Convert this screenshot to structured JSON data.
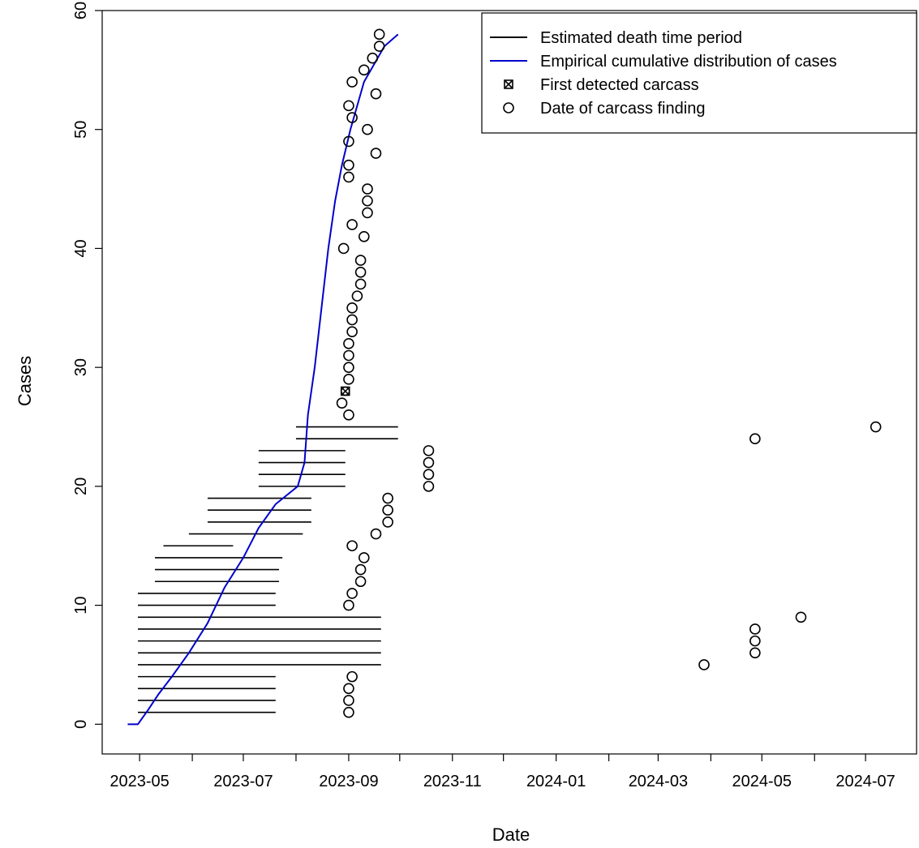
{
  "chart_data": {
    "type": "scatter",
    "xlabel": "Date",
    "ylabel": "Cases",
    "x_axis": {
      "type": "date",
      "range": [
        "2023-04-09",
        "2024-07-31"
      ],
      "tick_labels": [
        "2023-05",
        "2023-07",
        "2023-09",
        "2023-11",
        "2024-01",
        "2024-03",
        "2024-05",
        "2024-07"
      ],
      "minor_ticks": [
        "2023-06",
        "2023-08",
        "2023-10",
        "2023-12",
        "2024-02",
        "2024-04",
        "2024-06"
      ]
    },
    "y_axis": {
      "range": [
        -2.5,
        60
      ],
      "ticks": [
        0,
        10,
        20,
        30,
        40,
        50,
        60
      ]
    },
    "grid": false,
    "legend_position": "top-right",
    "legend": [
      {
        "label": "Estimated death time period",
        "kind": "line",
        "color": "#000000"
      },
      {
        "label": "Empirical cumulative distribution of cases",
        "kind": "line",
        "color": "#0000cc"
      },
      {
        "label": "First detected carcass",
        "kind": "marker-x-circle",
        "color": "#000000"
      },
      {
        "label": "Date of carcass finding",
        "kind": "marker-circle",
        "color": "#000000"
      }
    ],
    "series": [
      {
        "name": "Estimated death time period",
        "intervals": [
          {
            "case": 1,
            "start": "2023-04-30",
            "end": "2023-07-20"
          },
          {
            "case": 2,
            "start": "2023-04-30",
            "end": "2023-07-20"
          },
          {
            "case": 3,
            "start": "2023-04-30",
            "end": "2023-07-20"
          },
          {
            "case": 4,
            "start": "2023-04-30",
            "end": "2023-07-20"
          },
          {
            "case": 5,
            "start": "2023-04-30",
            "end": "2023-09-20"
          },
          {
            "case": 6,
            "start": "2023-04-30",
            "end": "2023-09-20"
          },
          {
            "case": 7,
            "start": "2023-04-30",
            "end": "2023-09-20"
          },
          {
            "case": 8,
            "start": "2023-04-30",
            "end": "2023-09-20"
          },
          {
            "case": 9,
            "start": "2023-04-30",
            "end": "2023-09-20"
          },
          {
            "case": 10,
            "start": "2023-04-30",
            "end": "2023-07-20"
          },
          {
            "case": 11,
            "start": "2023-04-30",
            "end": "2023-07-20"
          },
          {
            "case": 12,
            "start": "2023-05-10",
            "end": "2023-07-22"
          },
          {
            "case": 13,
            "start": "2023-05-10",
            "end": "2023-07-22"
          },
          {
            "case": 14,
            "start": "2023-05-10",
            "end": "2023-07-24"
          },
          {
            "case": 15,
            "start": "2023-05-15",
            "end": "2023-06-25"
          },
          {
            "case": 16,
            "start": "2023-05-30",
            "end": "2023-08-05"
          },
          {
            "case": 17,
            "start": "2023-06-10",
            "end": "2023-08-10"
          },
          {
            "case": 18,
            "start": "2023-06-10",
            "end": "2023-08-10"
          },
          {
            "case": 19,
            "start": "2023-06-10",
            "end": "2023-08-10"
          },
          {
            "case": 20,
            "start": "2023-07-10",
            "end": "2023-08-30"
          },
          {
            "case": 21,
            "start": "2023-07-10",
            "end": "2023-08-30"
          },
          {
            "case": 22,
            "start": "2023-07-10",
            "end": "2023-08-30"
          },
          {
            "case": 23,
            "start": "2023-07-10",
            "end": "2023-08-30"
          },
          {
            "case": 24,
            "start": "2023-08-01",
            "end": "2023-09-30"
          },
          {
            "case": 25,
            "start": "2023-08-01",
            "end": "2023-09-30"
          }
        ]
      },
      {
        "name": "Empirical cumulative distribution of cases",
        "color": "#0000cc",
        "points": [
          [
            "2023-04-24",
            0
          ],
          [
            "2023-04-30",
            0
          ],
          [
            "2023-05-06",
            1.2
          ],
          [
            "2023-05-12",
            2.5
          ],
          [
            "2023-05-20",
            4
          ],
          [
            "2023-05-30",
            6
          ],
          [
            "2023-06-10",
            8.5
          ],
          [
            "2023-06-20",
            11.5
          ],
          [
            "2023-07-01",
            14
          ],
          [
            "2023-07-10",
            16.5
          ],
          [
            "2023-07-20",
            18.5
          ],
          [
            "2023-08-02",
            20
          ],
          [
            "2023-08-06",
            22
          ],
          [
            "2023-08-08",
            26
          ],
          [
            "2023-08-12",
            30
          ],
          [
            "2023-08-16",
            35
          ],
          [
            "2023-08-20",
            40
          ],
          [
            "2023-08-24",
            44
          ],
          [
            "2023-08-28",
            47
          ],
          [
            "2023-09-02",
            50
          ],
          [
            "2023-09-06",
            52
          ],
          [
            "2023-09-10",
            54
          ],
          [
            "2023-09-14",
            55
          ],
          [
            "2023-09-18",
            56
          ],
          [
            "2023-09-22",
            57
          ],
          [
            "2023-09-30",
            58
          ]
        ]
      },
      {
        "name": "First detected carcass",
        "points": [
          [
            "2023-08-30",
            28
          ]
        ]
      },
      {
        "name": "Date of carcass finding",
        "points": [
          [
            "2023-09-01",
            1
          ],
          [
            "2023-09-01",
            2
          ],
          [
            "2023-09-01",
            3
          ],
          [
            "2023-09-03",
            4
          ],
          [
            "2024-03-28",
            5
          ],
          [
            "2024-04-27",
            6
          ],
          [
            "2024-04-27",
            7
          ],
          [
            "2024-04-27",
            8
          ],
          [
            "2024-05-24",
            9
          ],
          [
            "2023-09-01",
            10
          ],
          [
            "2023-09-03",
            11
          ],
          [
            "2023-09-08",
            12
          ],
          [
            "2023-09-08",
            13
          ],
          [
            "2023-09-10",
            14
          ],
          [
            "2023-09-03",
            15
          ],
          [
            "2023-09-17",
            16
          ],
          [
            "2023-09-24",
            17
          ],
          [
            "2023-09-24",
            18
          ],
          [
            "2023-09-24",
            19
          ],
          [
            "2023-10-18",
            20
          ],
          [
            "2023-10-18",
            21
          ],
          [
            "2023-10-18",
            22
          ],
          [
            "2023-10-18",
            23
          ],
          [
            "2024-04-27",
            24
          ],
          [
            "2024-07-07",
            25
          ],
          [
            "2023-09-01",
            26
          ],
          [
            "2023-08-28",
            27
          ],
          [
            "2023-09-01",
            29
          ],
          [
            "2023-09-01",
            30
          ],
          [
            "2023-09-01",
            31
          ],
          [
            "2023-09-01",
            32
          ],
          [
            "2023-09-03",
            33
          ],
          [
            "2023-09-03",
            34
          ],
          [
            "2023-09-03",
            35
          ],
          [
            "2023-09-06",
            36
          ],
          [
            "2023-09-08",
            37
          ],
          [
            "2023-09-08",
            38
          ],
          [
            "2023-09-08",
            39
          ],
          [
            "2023-08-29",
            40
          ],
          [
            "2023-09-10",
            41
          ],
          [
            "2023-09-03",
            42
          ],
          [
            "2023-09-12",
            43
          ],
          [
            "2023-09-12",
            44
          ],
          [
            "2023-09-12",
            45
          ],
          [
            "2023-09-01",
            46
          ],
          [
            "2023-09-01",
            47
          ],
          [
            "2023-09-17",
            48
          ],
          [
            "2023-09-01",
            49
          ],
          [
            "2023-09-12",
            50
          ],
          [
            "2023-09-03",
            51
          ],
          [
            "2023-09-01",
            52
          ],
          [
            "2023-09-17",
            53
          ],
          [
            "2023-09-03",
            54
          ],
          [
            "2023-09-10",
            55
          ],
          [
            "2023-09-15",
            56
          ],
          [
            "2023-09-19",
            57
          ],
          [
            "2023-09-19",
            58
          ]
        ]
      }
    ]
  }
}
